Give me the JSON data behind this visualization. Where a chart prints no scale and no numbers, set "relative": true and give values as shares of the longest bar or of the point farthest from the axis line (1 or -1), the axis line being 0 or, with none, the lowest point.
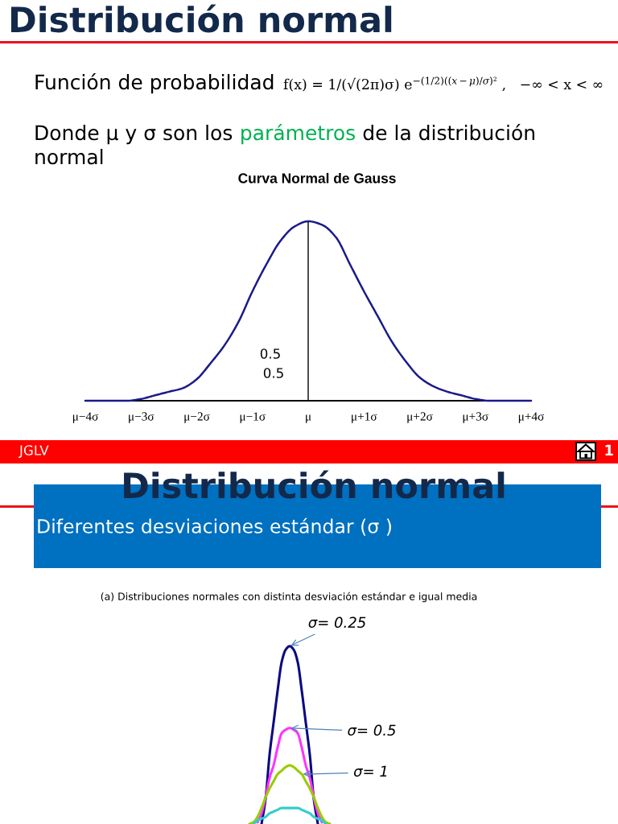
{
  "chart_data": [
    {
      "type": "line",
      "title": "Curva Normal de Gauss",
      "relative": true,
      "tick_labels": "x",
      "categories": [
        "μ−4σ",
        null,
        null,
        null,
        "μ−3σ",
        null,
        null,
        null,
        "μ−2σ",
        null,
        null,
        null,
        "μ−1σ",
        null,
        null,
        null,
        "μ",
        null,
        null,
        null,
        "μ+1σ",
        null,
        null,
        null,
        "μ+2σ",
        null,
        null,
        null,
        "μ+3σ",
        null,
        null,
        null,
        "μ+4σ"
      ],
      "series": [
        {
          "color": "#1a1a8a",
          "values": [
            0,
            0,
            0,
            0,
            0.01,
            0.03,
            0.05,
            0.07,
            0.12,
            0.21,
            0.31,
            0.44,
            0.61,
            0.76,
            0.89,
            0.97,
            1,
            0.98,
            0.91,
            0.76,
            0.61,
            0.47,
            0.33,
            0.22,
            0.13,
            0.08,
            0.05,
            0.03,
            0.01,
            0,
            0,
            0,
            0
          ]
        }
      ],
      "ref_lines": [
        {
          "axis": "x",
          "value": "μ",
          "color": "#000000"
        }
      ],
      "annotations": [
        "Distribución normal",
        "Función de probabilidad",
        "f(x) = 1/(√(2π)σ) e$^{−(1/2)((x−μ)/σ)²}$ ,   −∞ < x < ∞",
        "Donde μ y σ son los",
        "parámetros",
        "de la distribución normal",
        "0.5",
        "0.5",
        "JGLV",
        "1"
      ]
    },
    {
      "type": "line",
      "title": "(a) Distribuciones normales con distinta desviación estándar e igual media",
      "relative": true,
      "tick_labels": false,
      "categories": [
        null,
        null,
        null,
        null,
        null,
        null,
        null,
        null,
        null,
        null,
        null,
        null,
        null,
        null,
        null,
        null,
        null,
        null,
        null,
        null,
        null,
        null,
        null,
        null,
        null
      ],
      "series": [
        {
          "name": "σ= 0.25",
          "color": "#0a0a80",
          "values": [
            null,
            null,
            null,
            null,
            null,
            0,
            0.14,
            0.39,
            0.57,
            0.75,
            0.91,
            0.98,
            1,
            0.98,
            0.91,
            0.75,
            0.57,
            0.39,
            0.14,
            0,
            null,
            null,
            null,
            null,
            null
          ]
        },
        {
          "name": "σ= 0.5",
          "color": "#ff33ff",
          "values": [
            null,
            null,
            null,
            null,
            0.01,
            0.06,
            0.15,
            0.26,
            0.33,
            0.43,
            0.51,
            0.53,
            0.54,
            0.53,
            0.51,
            0.43,
            0.33,
            0.26,
            0.15,
            0.06,
            0.01,
            null,
            null,
            null,
            null
          ]
        },
        {
          "name": "σ= 1",
          "color": "#99cc00",
          "values": [
            null,
            null,
            0,
            0.01,
            0.04,
            0.09,
            0.15,
            0.2,
            0.24,
            0.28,
            0.3,
            0.32,
            0.33,
            0.32,
            0.3,
            0.28,
            0.24,
            0.2,
            0.15,
            0.09,
            0.04,
            0.01,
            0,
            null,
            null
          ]
        },
        {
          "color": "#33cccc",
          "values": [
            null,
            null,
            null,
            0,
            0.02,
            0.03,
            0.04,
            0.06,
            0.07,
            0.08,
            0.09,
            0.09,
            0.09,
            0.09,
            0.09,
            0.08,
            0.07,
            0.06,
            0.04,
            0.03,
            0.02,
            0,
            null,
            null,
            null
          ]
        }
      ],
      "annotations": [
        "Distribución normal",
        "Diferentes desviaciones estándar (σ )"
      ]
    }
  ]
}
